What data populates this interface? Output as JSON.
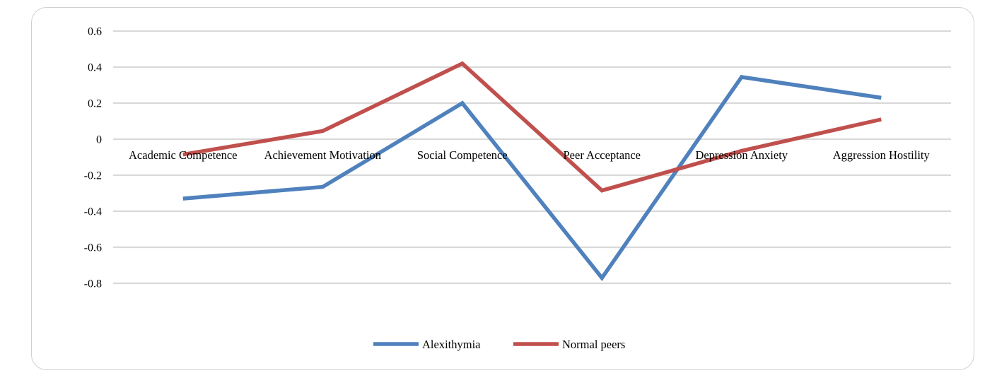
{
  "chart_data": {
    "type": "line",
    "categories": [
      "Academic Competence",
      "Achievement Motivation",
      "Social Competence",
      "Peer Acceptance",
      "Depression Anxiety",
      "Aggression Hostility"
    ],
    "series": [
      {
        "name": "Alexithymia",
        "color": "#4f81bd",
        "values": [
          -0.33,
          -0.265,
          0.2,
          -0.77,
          0.345,
          0.23
        ]
      },
      {
        "name": "Normal peers",
        "color": "#c0504d",
        "values": [
          -0.085,
          0.045,
          0.42,
          -0.285,
          -0.065,
          0.11
        ]
      }
    ],
    "yticks": [
      "0.6",
      "0.4",
      "0.2",
      "0",
      "-0.2",
      "-0.4",
      "-0.6",
      "-0.8"
    ],
    "ylim": [
      -0.8,
      0.6
    ],
    "grid": true,
    "gridline_color": "#d9d9d9",
    "legend_position": "bottom",
    "title": "",
    "xlabel": "",
    "ylabel": ""
  }
}
